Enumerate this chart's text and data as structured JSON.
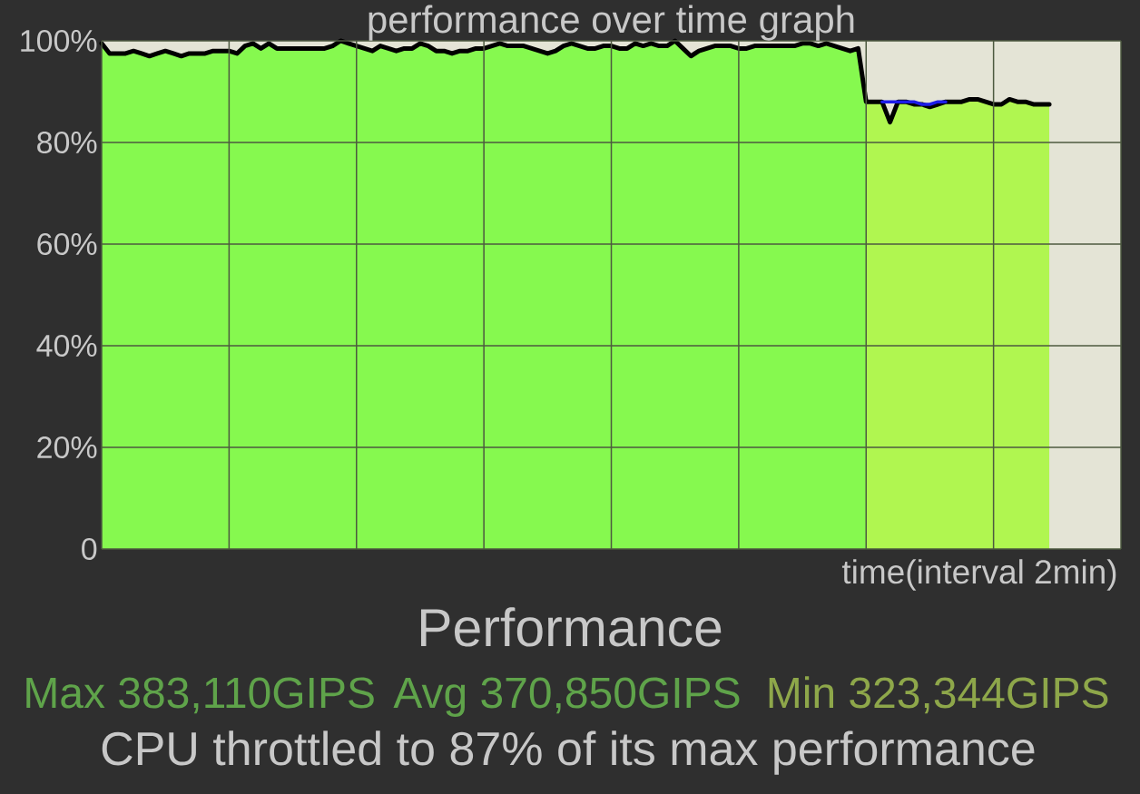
{
  "chart_data": {
    "type": "area",
    "title": "performance over time graph",
    "xlabel": "time(interval 2min)",
    "annotations": [
      "Performance",
      "Max 383,110GIPS",
      "Avg 370,850GIPS",
      "Min 323,344GIPS",
      "CPU throttled to 87% of its max performance"
    ],
    "categories": [
      null,
      null,
      null,
      null,
      null,
      null,
      null,
      null,
      null,
      null,
      null,
      null,
      null,
      null,
      null,
      null,
      null,
      null,
      null,
      null,
      null,
      null,
      null,
      null,
      null,
      null,
      null,
      null,
      null,
      null,
      null,
      null,
      null,
      null,
      null,
      null,
      null,
      null,
      null,
      null,
      null,
      null,
      null,
      null,
      null,
      null,
      null,
      null,
      null,
      null,
      null,
      null,
      null,
      null,
      null,
      null,
      null,
      null,
      null,
      null,
      null,
      null,
      null,
      null,
      null,
      null,
      null,
      null,
      null,
      null,
      null,
      null,
      null,
      null,
      null,
      null,
      null,
      null,
      null,
      null,
      null,
      null,
      null,
      null,
      null,
      null,
      null,
      null,
      null,
      null,
      null,
      null,
      null,
      null,
      null,
      null,
      null,
      null,
      null,
      null,
      null,
      null,
      null,
      null,
      null,
      null,
      null,
      null,
      null,
      null,
      null,
      null,
      null,
      null,
      null,
      null,
      null,
      null,
      null,
      null,
      null,
      null,
      null,
      null,
      null,
      null,
      null,
      null,
      null
    ],
    "series": [
      {
        "color": "#86f94f",
        "values": [
          99.5,
          97.5,
          97.5,
          97.5,
          98,
          97.5,
          97,
          97.5,
          98,
          97.5,
          97,
          97.5,
          97.5,
          97.5,
          98,
          98,
          98,
          97.5,
          99,
          99.5,
          98.5,
          99.5,
          98.5,
          98.5,
          98.5,
          98.5,
          98.5,
          98.5,
          98.5,
          99,
          100,
          99.5,
          99,
          98.5,
          98,
          99,
          98.5,
          98,
          98.5,
          98.5,
          99.5,
          99,
          98,
          98,
          97.5,
          98,
          98,
          98.5,
          98.5,
          99,
          99.5,
          99,
          99,
          99,
          98.5,
          98,
          97.5,
          98,
          99,
          99.5,
          99,
          98.5,
          98.5,
          99,
          99,
          98.5,
          98.5,
          99.5,
          99,
          99.5,
          99,
          99,
          100,
          98.5,
          97,
          98,
          98.5,
          99,
          99,
          99,
          98.5,
          98.5,
          99,
          99,
          99,
          99,
          99,
          99,
          99.5,
          99.5,
          99,
          99.5,
          99,
          98.5,
          98,
          98.5,
          88,
          null,
          null,
          null,
          null,
          null,
          null,
          null,
          null,
          null,
          null,
          null,
          null,
          null,
          null,
          null,
          null,
          null,
          null,
          null,
          null,
          null,
          null,
          null,
          null,
          null,
          null,
          null,
          null,
          null,
          null,
          null,
          null
        ]
      },
      {
        "color": "#b0f650",
        "values": [
          null,
          null,
          null,
          null,
          null,
          null,
          null,
          null,
          null,
          null,
          null,
          null,
          null,
          null,
          null,
          null,
          null,
          null,
          null,
          null,
          null,
          null,
          null,
          null,
          null,
          null,
          null,
          null,
          null,
          null,
          null,
          null,
          null,
          null,
          null,
          null,
          null,
          null,
          null,
          null,
          null,
          null,
          null,
          null,
          null,
          null,
          null,
          null,
          null,
          null,
          null,
          null,
          null,
          null,
          null,
          null,
          null,
          null,
          null,
          null,
          null,
          null,
          null,
          null,
          null,
          null,
          null,
          null,
          null,
          null,
          null,
          null,
          null,
          null,
          null,
          null,
          null,
          null,
          null,
          null,
          null,
          null,
          null,
          null,
          null,
          null,
          null,
          null,
          null,
          null,
          null,
          null,
          null,
          null,
          null,
          null,
          88,
          88,
          88,
          84,
          88,
          88,
          87.5,
          87.5,
          87,
          87.5,
          88,
          88,
          88,
          88.5,
          88.5,
          88,
          87.5,
          87.5,
          88.5,
          88,
          88,
          87.5,
          87.5,
          87.5,
          null,
          null,
          null,
          null,
          null,
          null,
          null,
          null,
          null
        ]
      },
      {
        "type": "line",
        "color": "#000000",
        "values": [
          99.5,
          97.5,
          97.5,
          97.5,
          98,
          97.5,
          97,
          97.5,
          98,
          97.5,
          97,
          97.5,
          97.5,
          97.5,
          98,
          98,
          98,
          97.5,
          99,
          99.5,
          98.5,
          99.5,
          98.5,
          98.5,
          98.5,
          98.5,
          98.5,
          98.5,
          98.5,
          99,
          100,
          99.5,
          99,
          98.5,
          98,
          99,
          98.5,
          98,
          98.5,
          98.5,
          99.5,
          99,
          98,
          98,
          97.5,
          98,
          98,
          98.5,
          98.5,
          99,
          99.5,
          99,
          99,
          99,
          98.5,
          98,
          97.5,
          98,
          99,
          99.5,
          99,
          98.5,
          98.5,
          99,
          99,
          98.5,
          98.5,
          99.5,
          99,
          99.5,
          99,
          99,
          100,
          98.5,
          97,
          98,
          98.5,
          99,
          99,
          99,
          98.5,
          98.5,
          99,
          99,
          99,
          99,
          99,
          99,
          99.5,
          99.5,
          99,
          99.5,
          99,
          98.5,
          98,
          98.5,
          88,
          88,
          88,
          84,
          88,
          88,
          87.5,
          87.5,
          87,
          87.5,
          88,
          88,
          88,
          88.5,
          88.5,
          88,
          87.5,
          87.5,
          88.5,
          88,
          88,
          87.5,
          87.5,
          87.5,
          null,
          null,
          null,
          null,
          null,
          null,
          null,
          null,
          null
        ]
      },
      {
        "type": "line",
        "color": "#1c1ce8",
        "values": [
          null,
          null,
          null,
          null,
          null,
          null,
          null,
          null,
          null,
          null,
          null,
          null,
          null,
          null,
          null,
          null,
          null,
          null,
          null,
          null,
          null,
          null,
          null,
          null,
          null,
          null,
          null,
          null,
          null,
          null,
          null,
          null,
          null,
          null,
          null,
          null,
          null,
          null,
          null,
          null,
          null,
          null,
          null,
          null,
          null,
          null,
          null,
          null,
          null,
          null,
          null,
          null,
          null,
          null,
          null,
          null,
          null,
          null,
          null,
          null,
          null,
          null,
          null,
          null,
          null,
          null,
          null,
          null,
          null,
          null,
          null,
          null,
          null,
          null,
          null,
          null,
          null,
          null,
          null,
          null,
          null,
          null,
          null,
          null,
          null,
          null,
          null,
          null,
          null,
          null,
          null,
          null,
          null,
          null,
          null,
          null,
          null,
          null,
          88,
          88,
          88,
          88,
          88,
          87.5,
          87.5,
          88,
          88,
          null,
          null,
          null,
          null,
          null,
          null,
          null,
          null,
          null,
          null,
          null,
          null,
          null,
          null,
          null,
          null,
          null,
          null,
          null,
          null,
          null,
          null
        ]
      }
    ],
    "ylim": [
      0,
      100
    ],
    "yticks": [
      0,
      {
        "value": 20,
        "label": "20%"
      },
      {
        "value": 40,
        "label": "40%"
      },
      {
        "value": 60,
        "label": "60%"
      },
      {
        "value": 80,
        "label": "80%"
      },
      {
        "value": 100,
        "label": "100%"
      }
    ],
    "grid": true
  }
}
